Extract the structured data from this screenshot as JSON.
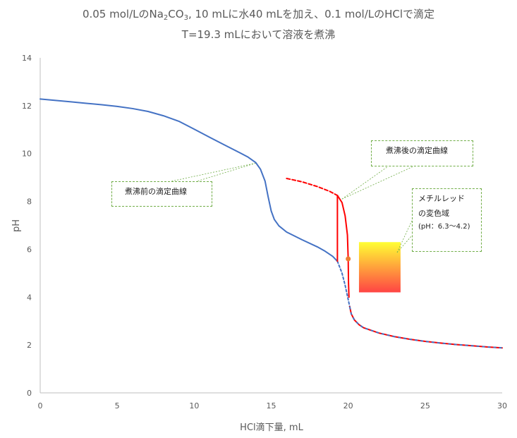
{
  "title": {
    "line1_prefix": "0.05 mol/LのNa",
    "line1_sub1": "2",
    "line1_mid": "CO",
    "line1_sub2": "3",
    "line1_suffix": ", 10 mLに水40 mLを加え、0.1 mol/LのHClで滴定",
    "line2": "T=19.3 mLにおいて溶液を煮沸"
  },
  "callouts": {
    "before": "煮沸前の滴定曲線",
    "after": "煮沸後の滴定曲線",
    "indicator_line1": "メチルレッド",
    "indicator_line2": "の変色域",
    "indicator_line3": "(pH：6.3〜4.2)"
  },
  "colors": {
    "before_curve": "#4472c4",
    "after_curve": "#ff0000",
    "marker": "#ed7d31",
    "axis": "#bfbfbf",
    "callout_border": "#70ad47",
    "indicator_top": "#ffff33",
    "indicator_bottom": "#ff4444"
  },
  "chart_data": {
    "type": "line",
    "xlabel": "HCl滴下量, mL",
    "ylabel": "pH",
    "xlim": [
      0,
      30
    ],
    "ylim": [
      0,
      14
    ],
    "xticks": [
      0,
      5,
      10,
      15,
      20,
      25,
      30
    ],
    "yticks": [
      0,
      2,
      4,
      6,
      8,
      10,
      12,
      14
    ],
    "grid": false,
    "legend": "none",
    "series": [
      {
        "x": [
          0,
          1,
          2,
          3,
          4,
          5,
          6,
          7,
          8,
          9,
          10,
          11,
          12,
          13,
          13.5,
          14,
          14.3,
          14.6,
          14.8,
          15,
          15.2,
          15.5,
          16,
          17,
          18,
          18.5,
          19,
          19.3
        ],
        "y": [
          12.28,
          12.22,
          12.16,
          12.1,
          12.04,
          11.97,
          11.88,
          11.76,
          11.58,
          11.35,
          11.02,
          10.68,
          10.35,
          10.02,
          9.85,
          9.62,
          9.35,
          8.85,
          8.2,
          7.6,
          7.25,
          6.98,
          6.72,
          6.4,
          6.1,
          5.92,
          5.7,
          5.5
        ]
      },
      {
        "x": [
          19.3,
          19.6,
          19.8,
          19.9,
          20,
          20.1
        ],
        "y": [
          5.5,
          5.0,
          4.5,
          4.2,
          3.9,
          3.6
        ]
      },
      {
        "x": [
          16,
          17,
          18,
          18.8,
          19.3
        ],
        "y": [
          8.96,
          8.82,
          8.62,
          8.42,
          8.25
        ]
      },
      {
        "x": [
          19.3,
          19.3
        ],
        "y": [
          8.25,
          5.5
        ]
      },
      {
        "x": [
          19.3,
          19.6,
          19.8,
          19.95,
          20.0,
          20.02,
          20.05
        ],
        "y": [
          8.25,
          7.95,
          7.4,
          6.6,
          5.6,
          4.6,
          4.0
        ]
      },
      {
        "x": [
          20.1,
          20.2,
          20.4,
          20.7,
          21,
          22,
          23,
          24,
          25,
          26,
          27,
          28,
          29,
          30
        ],
        "y": [
          3.6,
          3.3,
          3.05,
          2.85,
          2.72,
          2.5,
          2.35,
          2.24,
          2.15,
          2.08,
          2.02,
          1.97,
          1.92,
          1.88
        ]
      },
      {
        "x": [
          20.0
        ],
        "y": [
          5.6
        ]
      }
    ],
    "indicator_range": {
      "x": [
        20.7,
        23.4
      ],
      "y": [
        4.2,
        6.3
      ]
    }
  }
}
